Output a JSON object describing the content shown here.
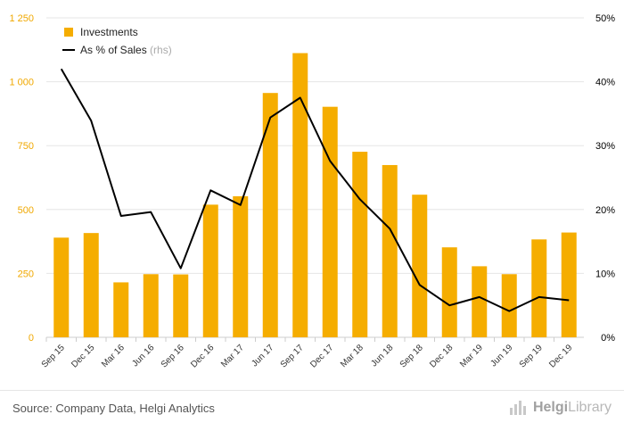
{
  "chart_data": {
    "type": "bar",
    "categories": [
      "Sep 15",
      "Dec 15",
      "Mar 16",
      "Jun 16",
      "Sep 16",
      "Dec 16",
      "Mar 17",
      "Jun 17",
      "Sep 17",
      "Dec 17",
      "Mar 18",
      "Jun 18",
      "Sep 18",
      "Dec 18",
      "Mar 19",
      "Jun 19",
      "Sep 19",
      "Dec 19"
    ],
    "series": [
      {
        "name": "Investments",
        "type": "bar",
        "axis": "left",
        "color": "#f5ad00",
        "values": [
          390,
          408,
          215,
          247,
          246,
          519,
          552,
          956,
          1112,
          902,
          726,
          674,
          558,
          352,
          278,
          247,
          383,
          410
        ]
      },
      {
        "name": "As % of Sales",
        "name_suffix": "(rhs)",
        "type": "line",
        "axis": "right",
        "color": "#000000",
        "values": [
          42.0,
          33.9,
          19.0,
          19.6,
          10.8,
          23.0,
          20.7,
          34.4,
          37.5,
          27.6,
          21.6,
          17.0,
          8.2,
          5.0,
          6.3,
          4.1,
          6.3,
          5.8
        ]
      }
    ],
    "y_left": {
      "min": 0,
      "max": 1250,
      "ticks": [
        0,
        250,
        500,
        750,
        1000,
        1250
      ],
      "tick_labels": [
        "0",
        "250",
        "500",
        "750",
        "1 000",
        "1 250"
      ]
    },
    "y_right": {
      "min": 0,
      "max": 50,
      "ticks": [
        0,
        10,
        20,
        30,
        40,
        50
      ],
      "tick_labels": [
        "0%",
        "10%",
        "20%",
        "30%",
        "40%",
        "50%"
      ]
    },
    "grid": true,
    "legend_position": "top-left"
  },
  "footer": {
    "source": "Source: Company Data, Helgi Analytics",
    "logo_part1": "Helgi",
    "logo_part2": "Library"
  }
}
